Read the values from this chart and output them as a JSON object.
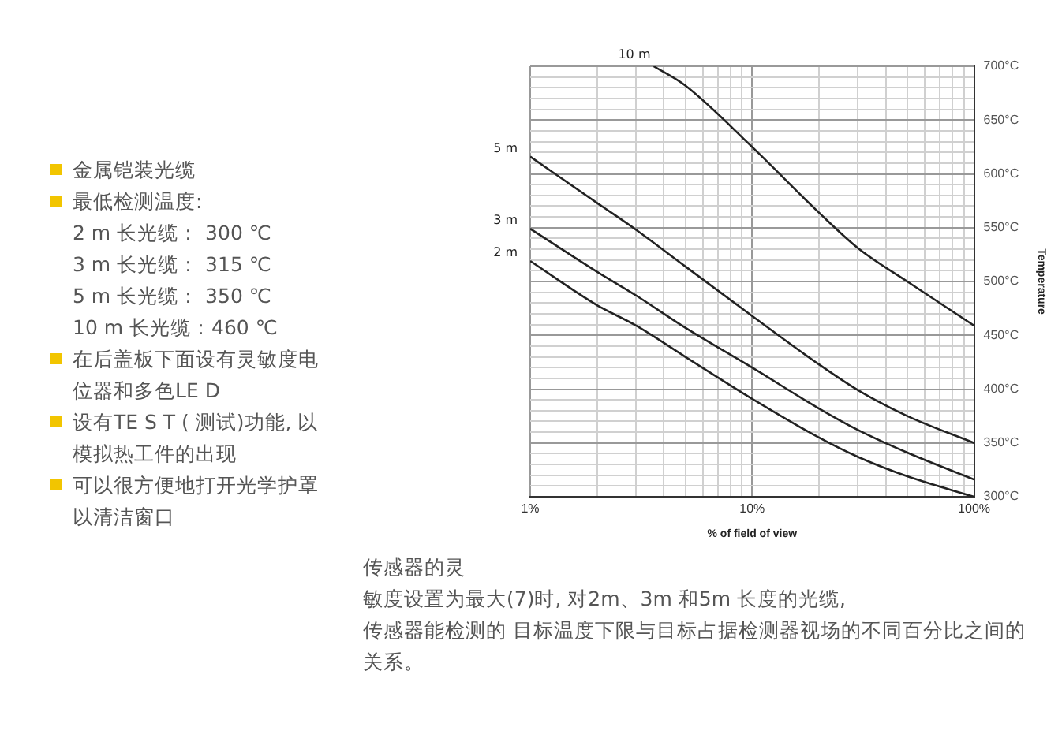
{
  "chart_data": {
    "type": "line",
    "xlabel": "% of field of view",
    "ylabel": "Temperature",
    "log": "x",
    "grid": true,
    "legend": false,
    "marker": "none",
    "line_style": "solid",
    "xlim": [
      1,
      100
    ],
    "ylim": [
      300,
      700
    ],
    "xticks": [
      {
        "value": 1,
        "label": "1%"
      },
      {
        "value": 2,
        "label": null
      },
      {
        "value": 3,
        "label": null
      },
      {
        "value": 4,
        "label": null
      },
      {
        "value": 5,
        "label": null
      },
      {
        "value": 6,
        "label": null
      },
      {
        "value": 7,
        "label": null
      },
      {
        "value": 8,
        "label": null
      },
      {
        "value": 9,
        "label": null
      },
      {
        "value": 10,
        "label": "10%"
      },
      {
        "value": 20,
        "label": null
      },
      {
        "value": 30,
        "label": null
      },
      {
        "value": 40,
        "label": null
      },
      {
        "value": 50,
        "label": null
      },
      {
        "value": 60,
        "label": null
      },
      {
        "value": 70,
        "label": null
      },
      {
        "value": 80,
        "label": null
      },
      {
        "value": 90,
        "label": null
      },
      {
        "value": 100,
        "label": "100%"
      }
    ],
    "yticks": [
      {
        "value": 300,
        "label": "300°C"
      },
      {
        "value": 310,
        "label": null
      },
      {
        "value": 320,
        "label": null
      },
      {
        "value": 330,
        "label": null
      },
      {
        "value": 340,
        "label": null
      },
      {
        "value": 350,
        "label": "350°C"
      },
      {
        "value": 360,
        "label": null
      },
      {
        "value": 370,
        "label": null
      },
      {
        "value": 380,
        "label": null
      },
      {
        "value": 390,
        "label": null
      },
      {
        "value": 400,
        "label": "400°C"
      },
      {
        "value": 410,
        "label": null
      },
      {
        "value": 420,
        "label": null
      },
      {
        "value": 430,
        "label": null
      },
      {
        "value": 440,
        "label": null
      },
      {
        "value": 450,
        "label": "450°C"
      },
      {
        "value": 460,
        "label": null
      },
      {
        "value": 470,
        "label": null
      },
      {
        "value": 480,
        "label": null
      },
      {
        "value": 490,
        "label": null
      },
      {
        "value": 500,
        "label": "500°C"
      },
      {
        "value": 510,
        "label": null
      },
      {
        "value": 520,
        "label": null
      },
      {
        "value": 530,
        "label": null
      },
      {
        "value": 540,
        "label": null
      },
      {
        "value": 550,
        "label": "550°C"
      },
      {
        "value": 560,
        "label": null
      },
      {
        "value": 570,
        "label": null
      },
      {
        "value": 580,
        "label": null
      },
      {
        "value": 590,
        "label": null
      },
      {
        "value": 600,
        "label": "600°C"
      },
      {
        "value": 610,
        "label": null
      },
      {
        "value": 620,
        "label": null
      },
      {
        "value": 630,
        "label": null
      },
      {
        "value": 640,
        "label": null
      },
      {
        "value": 650,
        "label": "650°C"
      },
      {
        "value": 660,
        "label": null
      },
      {
        "value": 670,
        "label": null
      },
      {
        "value": 680,
        "label": null
      },
      {
        "value": 690,
        "label": null
      },
      {
        "value": 700,
        "label": "700°C"
      }
    ],
    "series": [
      {
        "name": "10 m",
        "color": "#222222",
        "x": [
          3.6,
          5,
          10,
          20,
          30,
          50,
          100
        ],
        "values": [
          700,
          682,
          625,
          564,
          531,
          500,
          459
        ]
      },
      {
        "name": "5 m",
        "color": "#222222",
        "x": [
          1,
          2,
          3,
          5,
          10,
          20,
          30,
          50,
          100
        ],
        "values": [
          616,
          573,
          548,
          514,
          468,
          423,
          399,
          375,
          350
        ]
      },
      {
        "name": "3 m",
        "color": "#222222",
        "x": [
          1,
          2,
          3,
          5,
          10,
          20,
          30,
          50,
          100
        ],
        "values": [
          549,
          509,
          487,
          457,
          420,
          382,
          362,
          341,
          316
        ]
      },
      {
        "name": "2 m",
        "color": "#222222",
        "x": [
          1,
          2,
          3,
          5,
          10,
          20,
          30,
          50,
          100
        ],
        "values": [
          519,
          478,
          459,
          430,
          391,
          355,
          337,
          319,
          300
        ]
      }
    ],
    "annotations": [
      "金属铠装光缆",
      "最低检测温度:\n2 m 长光缆： 300 ℃\n3 m 长光缆： 315 ℃\n5 m 长光缆： 350 ℃\n10 m 长光缆：460 ℃",
      "在后盖板下面设有灵敏度电位器和多色LE D",
      "设有TE S T ( 测试)功能, 以模拟热工件的出现",
      "可以很方便地打开光学护罩以清洁窗口",
      "传感器的灵",
      "敏度设置为最大(7)时, 对2m、3m 和5m 长度的光缆,",
      "传感器能检测的 目标温度下限与目标占据检测器视场的不同百分比之间的关系。"
    ]
  }
}
